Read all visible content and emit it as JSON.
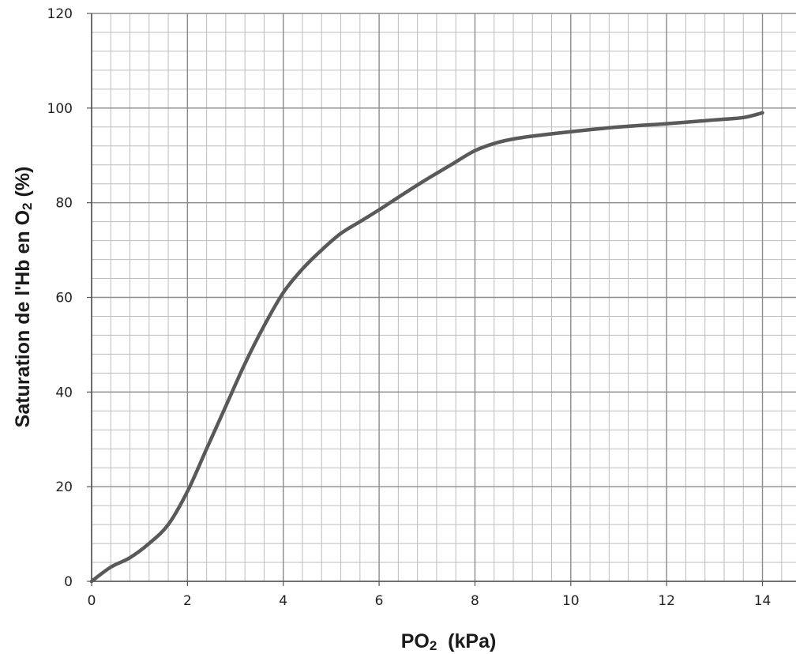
{
  "chart_data": {
    "type": "line",
    "title": "",
    "xlabel": {
      "before_sub": "PO",
      "sub": "2",
      "after_sub": "  (kPa)"
    },
    "ylabel": {
      "before_sub": "Saturation de l'Hb en O",
      "sub": "2",
      "after_sub": " (%)"
    },
    "xlim": [
      0,
      14.7
    ],
    "ylim": [
      0,
      120
    ],
    "x_ticks": [
      "0",
      "2",
      "4",
      "6",
      "8",
      "10",
      "12",
      "14"
    ],
    "y_ticks": [
      "0",
      "20",
      "40",
      "60",
      "80",
      "100",
      "120"
    ],
    "minor_grid_x_step": 0.4,
    "minor_grid_y_step": 4,
    "major_grid_x_step": 2,
    "major_grid_y_step": 20,
    "grid": true,
    "legend": "none",
    "colors": {
      "curve": "#595959",
      "minor_grid": "#bdbdbd",
      "major_grid": "#8c8c8c",
      "axis": "#555555"
    },
    "series": [
      {
        "x": [
          0,
          0.4,
          0.8,
          1.2,
          1.6,
          2.0,
          2.4,
          2.8,
          3.2,
          3.6,
          4.0,
          4.4,
          4.8,
          5.2,
          5.6,
          6.0,
          6.5,
          7.0,
          7.5,
          8.0,
          8.5,
          9.0,
          10.0,
          11.0,
          12.0,
          13.0,
          13.6,
          14.0
        ],
        "y": [
          0,
          3,
          5,
          8,
          12,
          19,
          28,
          37,
          46,
          54,
          61,
          66,
          70,
          73.5,
          76,
          78.5,
          81.8,
          85,
          88,
          91,
          92.8,
          93.8,
          95,
          96,
          96.7,
          97.5,
          98,
          99
        ]
      }
    ]
  }
}
